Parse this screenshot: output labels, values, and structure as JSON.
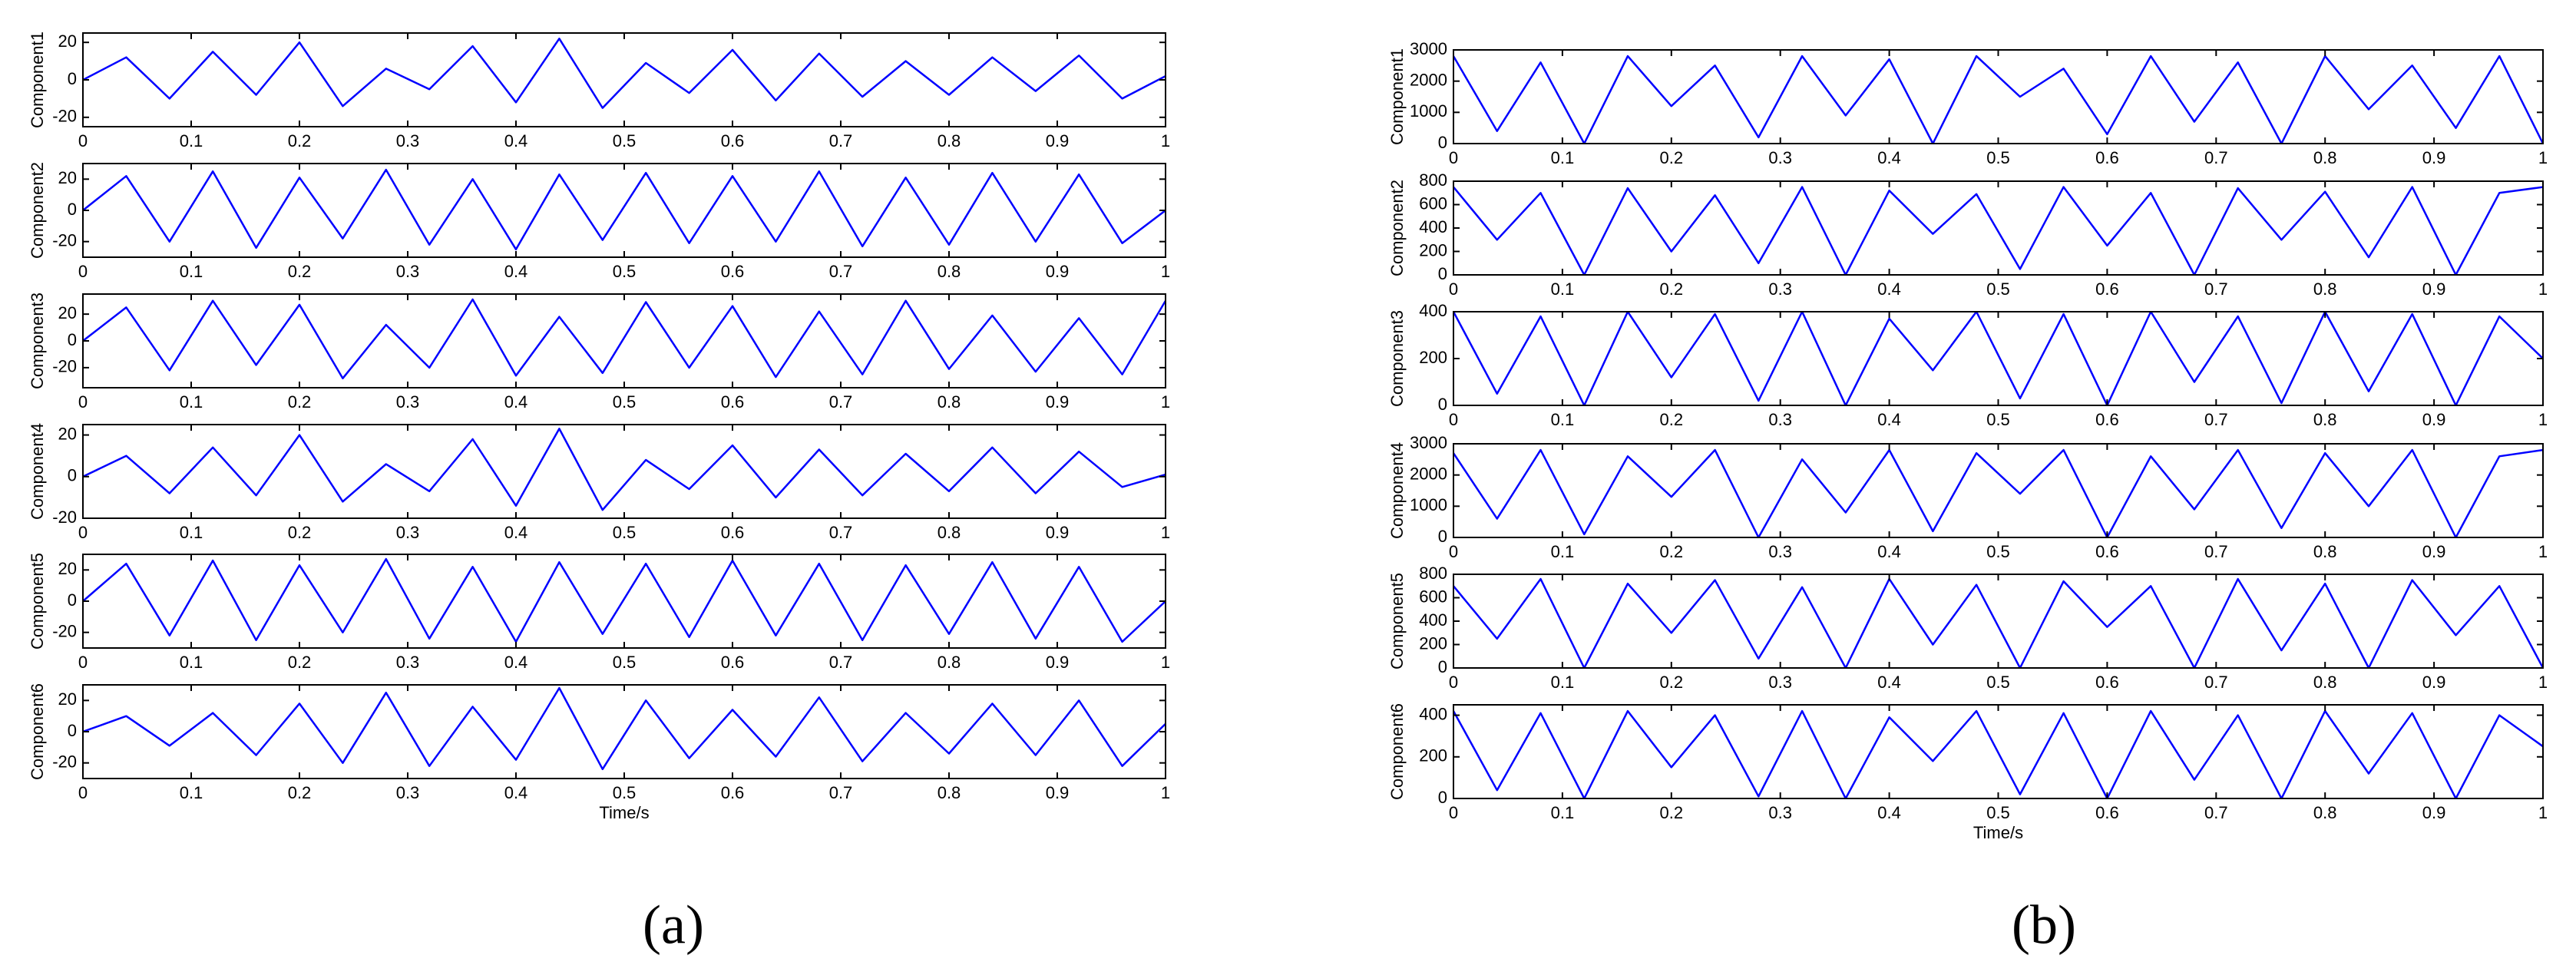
{
  "captions": [
    "(a)",
    "(b)"
  ],
  "chart_data": [
    {
      "type": "line",
      "ylabel": "Component1",
      "color": "#0000ff",
      "xlim": [
        0,
        1
      ],
      "ylim": [
        -25,
        25
      ],
      "xticks": [
        0,
        0.1,
        0.2,
        0.3,
        0.4,
        0.5,
        0.6,
        0.7,
        0.8,
        0.9,
        1
      ],
      "yticks": [
        -20,
        0,
        20
      ],
      "x": [
        0,
        0.04,
        0.08,
        0.12,
        0.16,
        0.2,
        0.24,
        0.28,
        0.32,
        0.36,
        0.4,
        0.44,
        0.48,
        0.52,
        0.56,
        0.6,
        0.64,
        0.68,
        0.72,
        0.76,
        0.8,
        0.84,
        0.88,
        0.92,
        0.96,
        1
      ],
      "values": [
        0,
        12,
        -10,
        15,
        -8,
        20,
        -14,
        6,
        -5,
        18,
        -12,
        22,
        -15,
        9,
        -7,
        16,
        -11,
        14,
        -9,
        10,
        -8,
        12,
        -6,
        13,
        -10,
        2
      ]
    },
    {
      "type": "line",
      "ylabel": "Component2",
      "color": "#0000ff",
      "xlim": [
        0,
        1
      ],
      "ylim": [
        -30,
        30
      ],
      "xticks": [
        0,
        0.1,
        0.2,
        0.3,
        0.4,
        0.5,
        0.6,
        0.7,
        0.8,
        0.9,
        1
      ],
      "yticks": [
        -20,
        0,
        20
      ],
      "x": [
        0,
        0.04,
        0.08,
        0.12,
        0.16,
        0.2,
        0.24,
        0.28,
        0.32,
        0.36,
        0.4,
        0.44,
        0.48,
        0.52,
        0.56,
        0.6,
        0.64,
        0.68,
        0.72,
        0.76,
        0.8,
        0.84,
        0.88,
        0.92,
        0.96,
        1
      ],
      "values": [
        0,
        22,
        -20,
        25,
        -24,
        21,
        -18,
        26,
        -22,
        20,
        -25,
        23,
        -19,
        24,
        -21,
        22,
        -20,
        25,
        -23,
        21,
        -22,
        24,
        -20,
        23,
        -21,
        0
      ]
    },
    {
      "type": "line",
      "ylabel": "Component3",
      "color": "#0000ff",
      "xlim": [
        0,
        1
      ],
      "ylim": [
        -35,
        35
      ],
      "xticks": [
        0,
        0.1,
        0.2,
        0.3,
        0.4,
        0.5,
        0.6,
        0.7,
        0.8,
        0.9,
        1
      ],
      "yticks": [
        -20,
        0,
        20
      ],
      "x": [
        0,
        0.04,
        0.08,
        0.12,
        0.16,
        0.2,
        0.24,
        0.28,
        0.32,
        0.36,
        0.4,
        0.44,
        0.48,
        0.52,
        0.56,
        0.6,
        0.64,
        0.68,
        0.72,
        0.76,
        0.8,
        0.84,
        0.88,
        0.92,
        0.96,
        1
      ],
      "values": [
        0,
        25,
        -22,
        30,
        -18,
        27,
        -28,
        12,
        -20,
        31,
        -26,
        18,
        -24,
        29,
        -20,
        26,
        -27,
        22,
        -25,
        30,
        -21,
        19,
        -23,
        17,
        -25,
        30
      ]
    },
    {
      "type": "line",
      "ylabel": "Component4",
      "color": "#0000ff",
      "xlim": [
        0,
        1
      ],
      "ylim": [
        -20,
        25
      ],
      "xticks": [
        0,
        0.1,
        0.2,
        0.3,
        0.4,
        0.5,
        0.6,
        0.7,
        0.8,
        0.9,
        1
      ],
      "yticks": [
        -20,
        0,
        20
      ],
      "x": [
        0,
        0.04,
        0.08,
        0.12,
        0.16,
        0.2,
        0.24,
        0.28,
        0.32,
        0.36,
        0.4,
        0.44,
        0.48,
        0.52,
        0.56,
        0.6,
        0.64,
        0.68,
        0.72,
        0.76,
        0.8,
        0.84,
        0.88,
        0.92,
        0.96,
        1
      ],
      "values": [
        0,
        10,
        -8,
        14,
        -9,
        20,
        -12,
        6,
        -7,
        18,
        -14,
        23,
        -16,
        8,
        -6,
        15,
        -10,
        13,
        -9,
        11,
        -7,
        14,
        -8,
        12,
        -5,
        1
      ]
    },
    {
      "type": "line",
      "ylabel": "Component5",
      "color": "#0000ff",
      "xlim": [
        0,
        1
      ],
      "ylim": [
        -30,
        30
      ],
      "xticks": [
        0,
        0.1,
        0.2,
        0.3,
        0.4,
        0.5,
        0.6,
        0.7,
        0.8,
        0.9,
        1
      ],
      "yticks": [
        -20,
        0,
        20
      ],
      "x": [
        0,
        0.04,
        0.08,
        0.12,
        0.16,
        0.2,
        0.24,
        0.28,
        0.32,
        0.36,
        0.4,
        0.44,
        0.48,
        0.52,
        0.56,
        0.6,
        0.64,
        0.68,
        0.72,
        0.76,
        0.8,
        0.84,
        0.88,
        0.92,
        0.96,
        1
      ],
      "values": [
        0,
        24,
        -22,
        26,
        -25,
        23,
        -20,
        27,
        -24,
        22,
        -26,
        25,
        -21,
        24,
        -23,
        26,
        -22,
        24,
        -25,
        23,
        -21,
        25,
        -24,
        22,
        -26,
        0
      ]
    },
    {
      "type": "line",
      "ylabel": "Component6",
      "xlabel": "Time/s",
      "color": "#0000ff",
      "xlim": [
        0,
        1
      ],
      "ylim": [
        -30,
        30
      ],
      "xticks": [
        0,
        0.1,
        0.2,
        0.3,
        0.4,
        0.5,
        0.6,
        0.7,
        0.8,
        0.9,
        1
      ],
      "yticks": [
        -20,
        0,
        20
      ],
      "x": [
        0,
        0.04,
        0.08,
        0.12,
        0.16,
        0.2,
        0.24,
        0.28,
        0.32,
        0.36,
        0.4,
        0.44,
        0.48,
        0.52,
        0.56,
        0.6,
        0.64,
        0.68,
        0.72,
        0.76,
        0.8,
        0.84,
        0.88,
        0.92,
        0.96,
        1
      ],
      "values": [
        0,
        10,
        -9,
        12,
        -15,
        18,
        -20,
        25,
        -22,
        16,
        -18,
        28,
        -24,
        20,
        -17,
        14,
        -16,
        22,
        -19,
        12,
        -14,
        18,
        -15,
        20,
        -22,
        5
      ]
    },
    {
      "type": "line",
      "ylabel": "Component1",
      "color": "#0000ff",
      "xlim": [
        0,
        1
      ],
      "ylim": [
        0,
        3000
      ],
      "xticks": [
        0,
        0.1,
        0.2,
        0.3,
        0.4,
        0.5,
        0.6,
        0.7,
        0.8,
        0.9,
        1
      ],
      "yticks": [
        0,
        1000,
        2000,
        3000
      ],
      "x": [
        0,
        0.04,
        0.08,
        0.12,
        0.16,
        0.2,
        0.24,
        0.28,
        0.32,
        0.36,
        0.4,
        0.44,
        0.48,
        0.52,
        0.56,
        0.6,
        0.64,
        0.68,
        0.72,
        0.76,
        0.8,
        0.84,
        0.88,
        0.92,
        0.96,
        1
      ],
      "values": [
        2800,
        400,
        2600,
        0,
        2800,
        1200,
        2500,
        200,
        2800,
        900,
        2700,
        0,
        2800,
        1500,
        2400,
        300,
        2800,
        700,
        2600,
        0,
        2800,
        1100,
        2500,
        500,
        2800,
        0
      ]
    },
    {
      "type": "line",
      "ylabel": "Component2",
      "color": "#0000ff",
      "xlim": [
        0,
        1
      ],
      "ylim": [
        0,
        800
      ],
      "xticks": [
        0,
        0.1,
        0.2,
        0.3,
        0.4,
        0.5,
        0.6,
        0.7,
        0.8,
        0.9,
        1
      ],
      "yticks": [
        0,
        200,
        400,
        600,
        800
      ],
      "x": [
        0,
        0.04,
        0.08,
        0.12,
        0.16,
        0.2,
        0.24,
        0.28,
        0.32,
        0.36,
        0.4,
        0.44,
        0.48,
        0.52,
        0.56,
        0.6,
        0.64,
        0.68,
        0.72,
        0.76,
        0.8,
        0.84,
        0.88,
        0.92,
        0.96,
        1
      ],
      "values": [
        750,
        300,
        700,
        0,
        740,
        200,
        680,
        100,
        750,
        0,
        720,
        350,
        690,
        50,
        750,
        250,
        700,
        0,
        740,
        300,
        710,
        150,
        750,
        0,
        700,
        750
      ]
    },
    {
      "type": "line",
      "ylabel": "Component3",
      "color": "#0000ff",
      "xlim": [
        0,
        1
      ],
      "ylim": [
        0,
        400
      ],
      "xticks": [
        0,
        0.1,
        0.2,
        0.3,
        0.4,
        0.5,
        0.6,
        0.7,
        0.8,
        0.9,
        1
      ],
      "yticks": [
        0,
        200,
        400
      ],
      "x": [
        0,
        0.04,
        0.08,
        0.12,
        0.16,
        0.2,
        0.24,
        0.28,
        0.32,
        0.36,
        0.4,
        0.44,
        0.48,
        0.52,
        0.56,
        0.6,
        0.64,
        0.68,
        0.72,
        0.76,
        0.8,
        0.84,
        0.88,
        0.92,
        0.96,
        1
      ],
      "values": [
        400,
        50,
        380,
        0,
        400,
        120,
        390,
        20,
        400,
        0,
        370,
        150,
        400,
        30,
        390,
        0,
        400,
        100,
        380,
        10,
        400,
        60,
        390,
        0,
        380,
        200
      ]
    },
    {
      "type": "line",
      "ylabel": "Component4",
      "color": "#0000ff",
      "xlim": [
        0,
        1
      ],
      "ylim": [
        0,
        3000
      ],
      "xticks": [
        0,
        0.1,
        0.2,
        0.3,
        0.4,
        0.5,
        0.6,
        0.7,
        0.8,
        0.9,
        1
      ],
      "yticks": [
        0,
        1000,
        2000,
        3000
      ],
      "x": [
        0,
        0.04,
        0.08,
        0.12,
        0.16,
        0.2,
        0.24,
        0.28,
        0.32,
        0.36,
        0.4,
        0.44,
        0.48,
        0.52,
        0.56,
        0.6,
        0.64,
        0.68,
        0.72,
        0.76,
        0.8,
        0.84,
        0.88,
        0.92,
        0.96,
        1
      ],
      "values": [
        2700,
        600,
        2800,
        100,
        2600,
        1300,
        2800,
        0,
        2500,
        800,
        2800,
        200,
        2700,
        1400,
        2800,
        0,
        2600,
        900,
        2800,
        300,
        2700,
        1000,
        2800,
        0,
        2600,
        2800
      ]
    },
    {
      "type": "line",
      "ylabel": "Component5",
      "color": "#0000ff",
      "xlim": [
        0,
        1
      ],
      "ylim": [
        0,
        800
      ],
      "xticks": [
        0,
        0.1,
        0.2,
        0.3,
        0.4,
        0.5,
        0.6,
        0.7,
        0.8,
        0.9,
        1
      ],
      "yticks": [
        0,
        200,
        400,
        600,
        800
      ],
      "x": [
        0,
        0.04,
        0.08,
        0.12,
        0.16,
        0.2,
        0.24,
        0.28,
        0.32,
        0.36,
        0.4,
        0.44,
        0.48,
        0.52,
        0.56,
        0.6,
        0.64,
        0.68,
        0.72,
        0.76,
        0.8,
        0.84,
        0.88,
        0.92,
        0.96,
        1
      ],
      "values": [
        700,
        250,
        760,
        0,
        720,
        300,
        750,
        80,
        690,
        0,
        760,
        200,
        710,
        0,
        740,
        350,
        700,
        0,
        760,
        150,
        720,
        0,
        750,
        280,
        700,
        0
      ]
    },
    {
      "type": "line",
      "ylabel": "Component6",
      "xlabel": "Time/s",
      "color": "#0000ff",
      "xlim": [
        0,
        1
      ],
      "ylim": [
        0,
        450
      ],
      "xticks": [
        0,
        0.1,
        0.2,
        0.3,
        0.4,
        0.5,
        0.6,
        0.7,
        0.8,
        0.9,
        1
      ],
      "yticks": [
        0,
        200,
        400
      ],
      "x": [
        0,
        0.04,
        0.08,
        0.12,
        0.16,
        0.2,
        0.24,
        0.28,
        0.32,
        0.36,
        0.4,
        0.44,
        0.48,
        0.52,
        0.56,
        0.6,
        0.64,
        0.68,
        0.72,
        0.76,
        0.8,
        0.84,
        0.88,
        0.92,
        0.96,
        1
      ],
      "values": [
        420,
        40,
        410,
        0,
        420,
        150,
        400,
        10,
        420,
        0,
        390,
        180,
        420,
        20,
        410,
        0,
        420,
        90,
        400,
        0,
        420,
        120,
        410,
        0,
        400,
        250
      ]
    }
  ]
}
